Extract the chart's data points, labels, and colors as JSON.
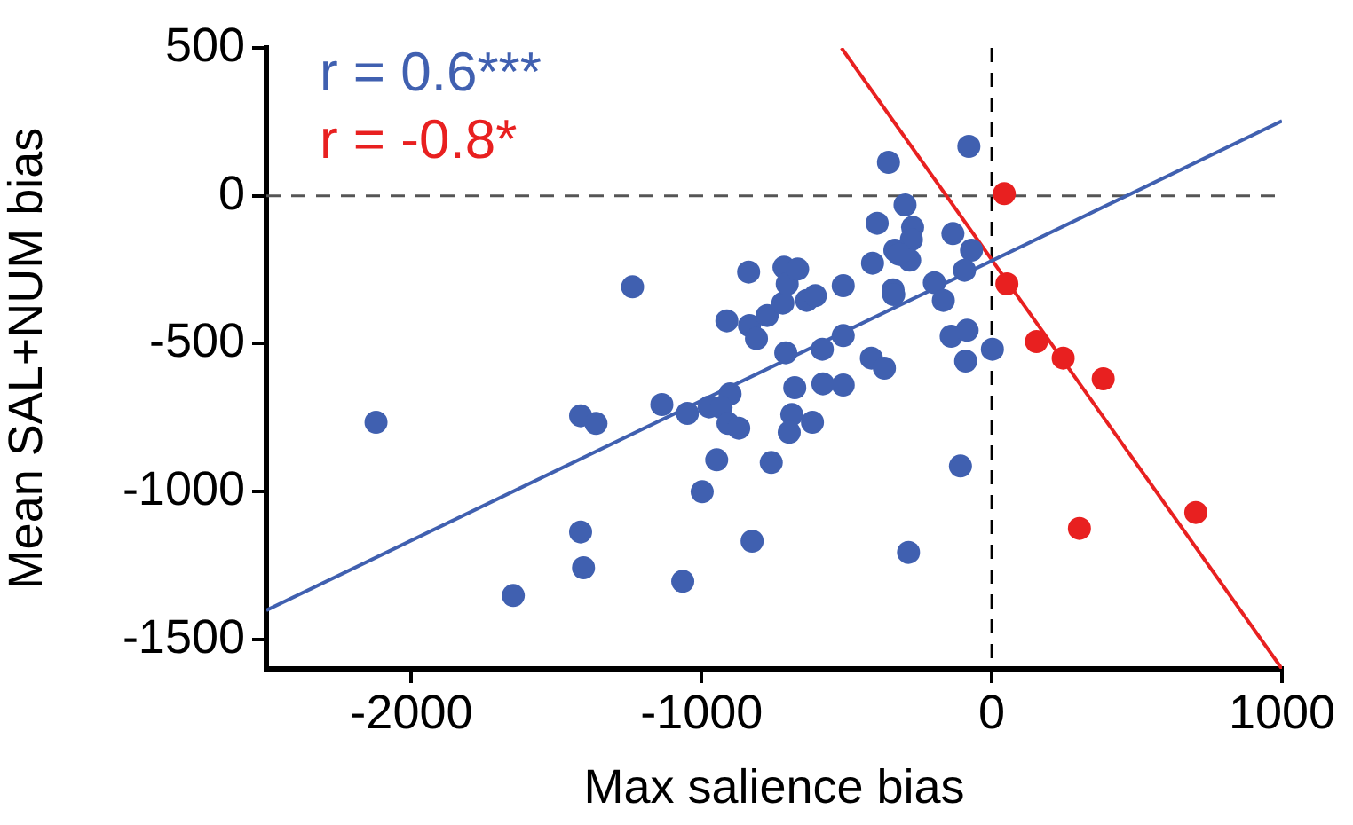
{
  "chart_data": {
    "type": "scatter",
    "xlabel": "Max salience bias",
    "ylabel": "Mean SAL+NUM bias",
    "xlim": [
      -2500,
      1000
    ],
    "xticks": [
      -2000,
      -1000,
      0,
      1000
    ],
    "ylim": [
      -1600,
      500
    ],
    "yticks": [
      -1500,
      -1000,
      -500,
      0,
      500
    ],
    "grid": false,
    "legend": false,
    "marker": "circle",
    "annotations": [
      "r = 0.6***",
      "r = -0.8*"
    ],
    "ref_lines": [
      {
        "axis": "y",
        "value": 0,
        "label": null,
        "color": "#555555",
        "line_style": "dashed"
      },
      {
        "axis": "x",
        "value": 0,
        "label": null,
        "color": "#000000",
        "line_style": "dashed"
      }
    ],
    "series": [
      {
        "type": "scatter",
        "color": "#4060b0",
        "x": [
          -2122,
          -1238,
          -1417,
          -1364,
          -1417,
          -1407,
          -1649,
          -1065,
          -1137,
          -1049,
          -998,
          -948,
          -826,
          -760,
          -974,
          -902,
          -933,
          -909,
          -872,
          -838,
          -913,
          -835,
          -811,
          -774,
          -720,
          -716,
          -705,
          -710,
          -679,
          -689,
          -698,
          -356,
          -79,
          -299,
          -395,
          -273,
          -277,
          -134,
          -334,
          -283,
          -320,
          -70,
          -411,
          -94,
          -669,
          -512,
          -340,
          -338,
          -198,
          -167,
          -638,
          -608,
          -512,
          -584,
          -140,
          -85,
          2,
          -90,
          -415,
          -370,
          -582,
          -512,
          -618,
          -108,
          -287
        ],
        "values": [
          -766,
          -308,
          -744,
          -770,
          -1137,
          -1258,
          -1352,
          -1304,
          -706,
          -736,
          -1001,
          -893,
          -1168,
          -902,
          -714,
          -670,
          -716,
          -770,
          -786,
          -258,
          -423,
          -439,
          -483,
          -405,
          -363,
          -242,
          -298,
          -531,
          -649,
          -740,
          -800,
          113,
          167,
          -31,
          -93,
          -107,
          -148,
          -128,
          -184,
          -218,
          -198,
          -184,
          -228,
          -252,
          -248,
          -304,
          -318,
          -334,
          -294,
          -354,
          -354,
          -338,
          -473,
          -519,
          -475,
          -455,
          -519,
          -559,
          -549,
          -583,
          -636,
          -640,
          -766,
          -914,
          -1206
        ]
      },
      {
        "type": "scatter",
        "color": "#e82020",
        "x": [
          43,
          52,
          154,
          246,
          384,
          302,
          703
        ],
        "values": [
          7,
          -298,
          -493,
          -549,
          -619,
          -1125,
          -1071
        ]
      },
      {
        "type": "line",
        "color": "#4060b0",
        "marker": "none",
        "x": [
          -2500,
          1000
        ],
        "values": [
          -1402,
          253
        ]
      },
      {
        "type": "line",
        "color": "#e82020",
        "marker": "none",
        "x": [
          -518,
          1000
        ],
        "values": [
          500,
          -1600
        ]
      }
    ]
  }
}
